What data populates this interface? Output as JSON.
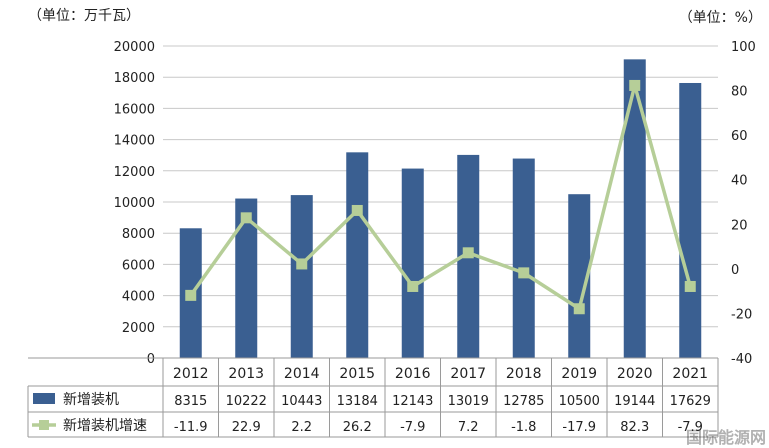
{
  "chart_data": {
    "type": "bar",
    "left_unit_label": "（单位：万千瓦）",
    "right_unit_label": "（单位：%）",
    "categories": [
      "2012",
      "2013",
      "2014",
      "2015",
      "2016",
      "2017",
      "2018",
      "2019",
      "2020",
      "2021"
    ],
    "left_axis": {
      "ylim": [
        0,
        20000
      ],
      "ticks": [
        "0",
        "2000",
        "4000",
        "6000",
        "8000",
        "10000",
        "12000",
        "14000",
        "16000",
        "18000",
        "20000"
      ]
    },
    "right_axis": {
      "ylim": [
        -40,
        100
      ],
      "ticks": [
        "-40",
        "-20",
        "0",
        "20",
        "40",
        "60",
        "80",
        "100"
      ]
    },
    "series": [
      {
        "name": "新增装机",
        "type": "bar",
        "axis": "left",
        "color": "#3A5F91",
        "values": [
          8315,
          10222,
          10443,
          13184,
          12143,
          13019,
          12785,
          10500,
          19144,
          17629
        ],
        "labels": [
          "8315",
          "10222",
          "10443",
          "13184",
          "12143",
          "13019",
          "12785",
          "10500",
          "19144",
          "17629"
        ]
      },
      {
        "name": "新增装机增速",
        "type": "line",
        "axis": "right",
        "color": "#B6CE98",
        "values": [
          -11.9,
          22.9,
          2.2,
          26.2,
          -7.9,
          7.2,
          -1.8,
          -17.9,
          82.3,
          -7.9
        ],
        "labels": [
          "-11.9",
          "22.9",
          "2.2",
          "26.2",
          "-7.9",
          "7.2",
          "-1.8",
          "-17.9",
          "82.3",
          "-7.9"
        ]
      }
    ],
    "watermark": "国际能源网"
  }
}
